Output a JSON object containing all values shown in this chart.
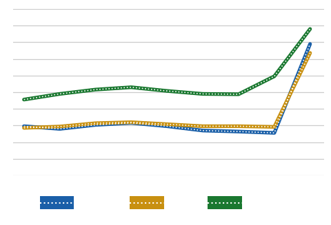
{
  "x": [
    0,
    1,
    2,
    3,
    4,
    5,
    6,
    7,
    8
  ],
  "blue": [
    148,
    140,
    152,
    158,
    148,
    135,
    132,
    128,
    395
  ],
  "orange": [
    143,
    147,
    157,
    160,
    154,
    148,
    148,
    146,
    368
  ],
  "green": [
    228,
    245,
    258,
    265,
    254,
    245,
    244,
    298,
    440
  ],
  "blue_color": "#1a5fa8",
  "orange_color": "#c89010",
  "green_color": "#1a7830",
  "bg_color": "#ffffff",
  "grid_color": "#cccccc",
  "line_width": 3.8,
  "dot_color_blue": "#1a5fa8",
  "dot_color_orange": "#c89010",
  "dot_color_green": "#1a7830",
  "ylim": [
    0,
    500
  ],
  "xlim": [
    -0.3,
    8.4
  ],
  "n_yticks": 10
}
